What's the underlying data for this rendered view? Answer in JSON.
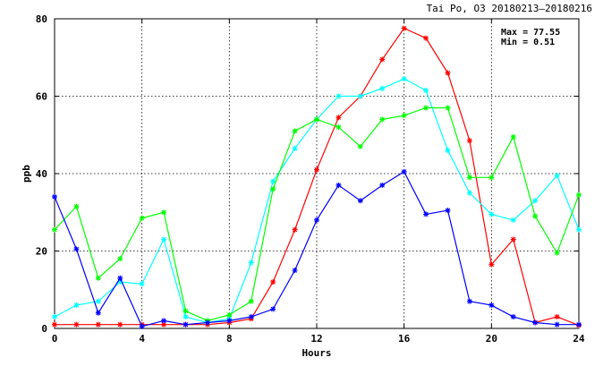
{
  "chart_data": {
    "type": "line",
    "title": "Tai Po, O3 20180213–20180216",
    "xlabel": "Hours",
    "ylabel": "ppb",
    "xlim": [
      0,
      24
    ],
    "ylim": [
      0,
      80
    ],
    "xticks": [
      0,
      4,
      8,
      12,
      16,
      20,
      24
    ],
    "yticks": [
      0,
      20,
      40,
      60,
      80
    ],
    "grid": true,
    "stats": {
      "max_label": "Max = 77.55",
      "min_label": "Min =  0.51"
    },
    "x": [
      0,
      1,
      2,
      3,
      4,
      5,
      6,
      7,
      8,
      9,
      10,
      11,
      12,
      13,
      14,
      15,
      16,
      17,
      18,
      19,
      20,
      21,
      22,
      23,
      24
    ],
    "series": [
      {
        "color": "#ff0000",
        "marker": "asterisk",
        "values": [
          1,
          1,
          1,
          1,
          1,
          1,
          1,
          1,
          1.5,
          2.5,
          12,
          25.5,
          41,
          54.5,
          60,
          69.5,
          77.55,
          75,
          66,
          48.5,
          16.5,
          23,
          1.5,
          3,
          0.8
        ]
      },
      {
        "color": "#00ffff",
        "marker": "asterisk",
        "values": [
          3,
          6,
          7,
          12,
          11.5,
          23,
          3,
          1.5,
          2.5,
          17,
          38,
          46.5,
          54,
          60,
          60,
          62,
          64.5,
          61.5,
          46,
          35,
          29.5,
          28,
          33,
          39.5,
          25.5
        ]
      },
      {
        "color": "#00ff00",
        "marker": "asterisk",
        "values": [
          25.5,
          31.5,
          13,
          18,
          28.5,
          30,
          4.5,
          2,
          3.5,
          7,
          36,
          51,
          54,
          52,
          47,
          54,
          55,
          57,
          57,
          39,
          39,
          49.5,
          29,
          19.5,
          34.5
        ]
      },
      {
        "color": "#0000ff",
        "marker": "asterisk",
        "values": [
          34,
          20.5,
          4,
          13,
          0.51,
          2,
          1,
          1.5,
          2,
          3,
          5,
          15,
          28,
          37,
          33,
          37,
          40.5,
          29.5,
          30.5,
          7,
          6,
          3,
          1.5,
          1,
          1
        ]
      }
    ]
  }
}
